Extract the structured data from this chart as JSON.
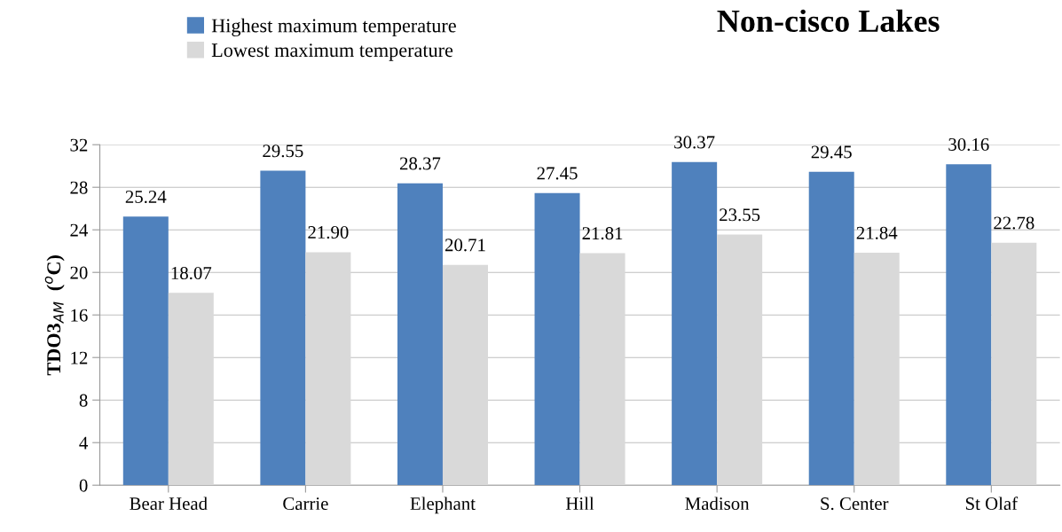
{
  "chart_data": {
    "type": "bar",
    "title": "Non-cisco Lakes",
    "ylabel": "TDO3$_{AM}$  ($^{o}$C)",
    "categories": [
      "Bear Head",
      "Carrie",
      "Elephant",
      "Hill",
      "Madison",
      "S. Center",
      "St Olaf"
    ],
    "series": [
      {
        "name": "Highest maximum temperature",
        "color": "#4f81bd",
        "values": [
          25.24,
          29.55,
          28.37,
          27.45,
          30.37,
          29.45,
          30.16
        ],
        "value_labels": [
          "25.24",
          "29.55",
          "28.37",
          "27.45",
          "30.37",
          "29.45",
          "30.16"
        ]
      },
      {
        "name": "Lowest maximum temperature",
        "color": "#d9d9d9",
        "values": [
          18.07,
          21.9,
          20.71,
          21.81,
          23.55,
          21.84,
          22.78
        ],
        "value_labels": [
          "18.07",
          "21.90",
          "20.71",
          "21.81",
          "23.55",
          "21.84",
          "22.78"
        ]
      }
    ],
    "ylim": [
      0,
      32
    ],
    "yticks": [
      0,
      4,
      8,
      12,
      16,
      20,
      24,
      28,
      32
    ],
    "grid": "y",
    "legend": "top left"
  }
}
